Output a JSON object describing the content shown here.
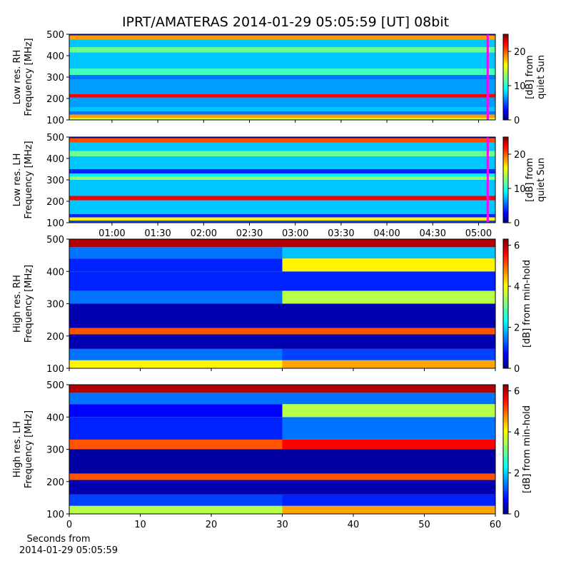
{
  "title": "IPRT/AMATERAS 2014-01-29 05:05:59 [UT]   08bit",
  "chart_data": [
    {
      "type": "heatmap",
      "ylabel": [
        "Low res. RH",
        "Frequency [MHz]"
      ],
      "colorbar_label": [
        "[dB] from",
        "quiet Sun"
      ],
      "colormap": "jet",
      "clim": [
        0,
        25
      ],
      "cticks": [
        0,
        10,
        20
      ],
      "ylim": [
        100,
        500
      ],
      "yticks": [
        100,
        200,
        300,
        400,
        500
      ],
      "xlim": [
        32,
        311
      ],
      "marker_x": 306,
      "marker_color": "#ff00ff",
      "x_bins": [
        32,
        311
      ],
      "y_bins": [
        100,
        110,
        125,
        140,
        160,
        205,
        220,
        290,
        310,
        340,
        370,
        415,
        440,
        475,
        495,
        500
      ],
      "z": [
        [
          14
        ],
        [
          18
        ],
        [
          6
        ],
        [
          8
        ],
        [
          7
        ],
        [
          22
        ],
        [
          7
        ],
        [
          6
        ],
        [
          11
        ],
        [
          8
        ],
        [
          8
        ],
        [
          12
        ],
        [
          8
        ],
        [
          18
        ],
        [
          2
        ]
      ]
    },
    {
      "type": "heatmap",
      "ylabel": [
        "Low res. LH",
        "Frequency [MHz]"
      ],
      "colorbar_label": [
        "[dB] from",
        "quiet Sun"
      ],
      "colormap": "jet",
      "clim": [
        0,
        25
      ],
      "cticks": [
        0,
        10,
        20
      ],
      "ylim": [
        100,
        500
      ],
      "yticks": [
        100,
        200,
        300,
        400,
        500
      ],
      "xlim": [
        32,
        311
      ],
      "marker_x": 306,
      "marker_color": "#ff00ff",
      "xticks": [
        {
          "value": 60,
          "label": "01:00"
        },
        {
          "value": 90,
          "label": "01:30"
        },
        {
          "value": 120,
          "label": "02:00"
        },
        {
          "value": 150,
          "label": "02:30"
        },
        {
          "value": 180,
          "label": "03:00"
        },
        {
          "value": 210,
          "label": "03:30"
        },
        {
          "value": 240,
          "label": "04:00"
        },
        {
          "value": 270,
          "label": "04:30"
        },
        {
          "value": 300,
          "label": "05:00"
        }
      ],
      "x_bins": [
        32,
        311
      ],
      "y_bins": [
        100,
        110,
        125,
        140,
        205,
        225,
        300,
        315,
        330,
        350,
        410,
        435,
        475,
        495,
        500
      ],
      "z": [
        [
          5
        ],
        [
          16
        ],
        [
          4
        ],
        [
          8
        ],
        [
          22
        ],
        [
          8
        ],
        [
          13
        ],
        [
          9
        ],
        [
          4
        ],
        [
          8
        ],
        [
          12
        ],
        [
          8
        ],
        [
          20
        ],
        [
          2
        ]
      ]
    },
    {
      "type": "heatmap",
      "ylabel": [
        "High res. RH",
        "Frequency [MHz]"
      ],
      "colorbar_label": [
        "[dB] from min-hold"
      ],
      "colormap": "jet",
      "clim": [
        0,
        6.3
      ],
      "cticks": [
        0,
        2,
        4,
        6
      ],
      "ylim": [
        100,
        500
      ],
      "yticks": [
        100,
        200,
        300,
        400,
        500
      ],
      "xlim": [
        0,
        60
      ],
      "x_bins": [
        0,
        30,
        60
      ],
      "y_bins": [
        100,
        125,
        160,
        205,
        225,
        300,
        340,
        400,
        440,
        475,
        500
      ],
      "z": [
        [
          4,
          4.5
        ],
        [
          1.5,
          1.2
        ],
        [
          0.3,
          0.3
        ],
        [
          5,
          5
        ],
        [
          0.3,
          0.3
        ],
        [
          1.5,
          3.5
        ],
        [
          1,
          1
        ],
        [
          1,
          4
        ],
        [
          1.5,
          2
        ],
        [
          6,
          6
        ]
      ]
    },
    {
      "type": "heatmap",
      "ylabel": [
        "High res. LH",
        "Frequency [MHz]"
      ],
      "colorbar_label": [
        "[dB] from min-hold"
      ],
      "colormap": "jet",
      "clim": [
        0,
        6.3
      ],
      "cticks": [
        0,
        2,
        4,
        6
      ],
      "ylim": [
        100,
        500
      ],
      "yticks": [
        100,
        200,
        300,
        400,
        500
      ],
      "xlim": [
        0,
        60
      ],
      "xticks": [
        0,
        10,
        20,
        30,
        40,
        50,
        60
      ],
      "xlabel": [
        "Seconds from",
        "2014-01-29 05:05:59"
      ],
      "x_bins": [
        0,
        30,
        60
      ],
      "y_bins": [
        100,
        125,
        160,
        205,
        225,
        300,
        330,
        400,
        440,
        475,
        500
      ],
      "z": [
        [
          3.5,
          4.5
        ],
        [
          1.2,
          1
        ],
        [
          0.3,
          0.3
        ],
        [
          5,
          5
        ],
        [
          0.2,
          0.2
        ],
        [
          5,
          5.5
        ],
        [
          1,
          1.5
        ],
        [
          0.8,
          3.5
        ],
        [
          1.5,
          1.5
        ],
        [
          6,
          6
        ]
      ]
    }
  ]
}
